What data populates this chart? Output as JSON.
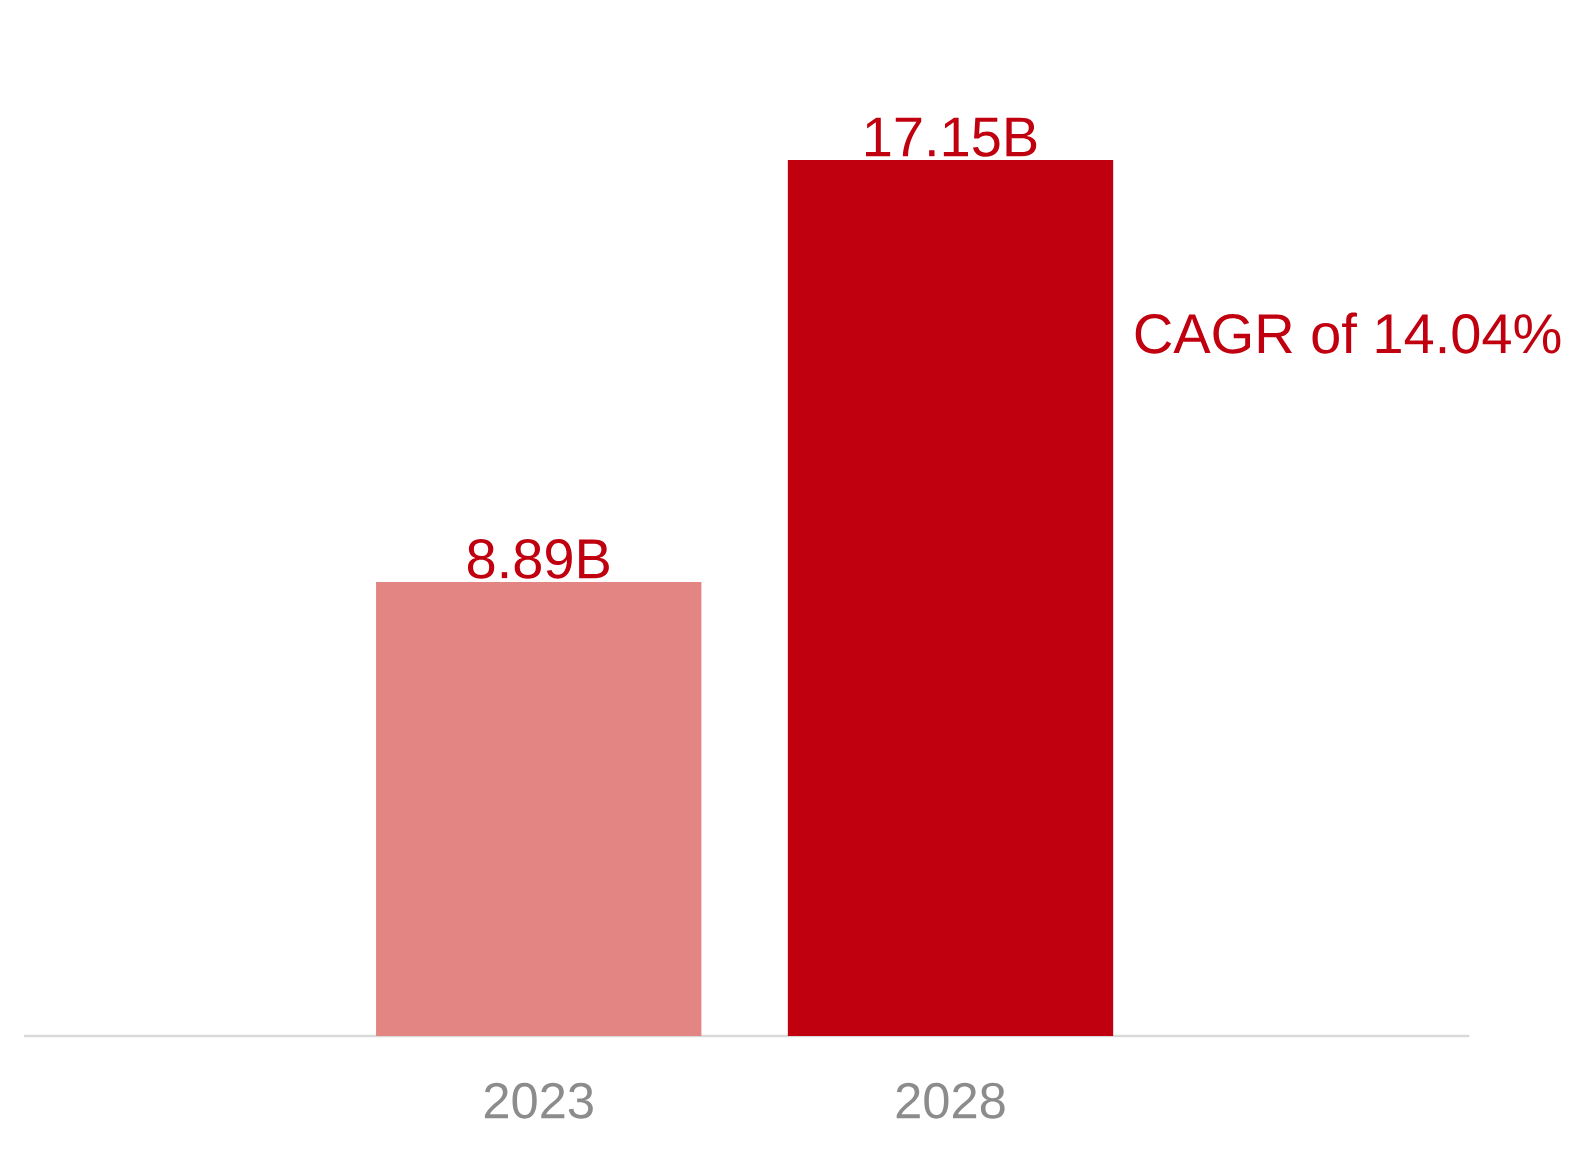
{
  "chart_data": {
    "type": "bar",
    "categories": [
      "2023",
      "2028"
    ],
    "values": [
      8.89,
      17.15
    ],
    "colors": [
      "#e38583",
      "#c0000f"
    ],
    "value_labels": [
      "8.89B",
      "17.15B"
    ],
    "tick_labels": "x",
    "annotations": [
      "CAGR of 14.04%"
    ]
  }
}
